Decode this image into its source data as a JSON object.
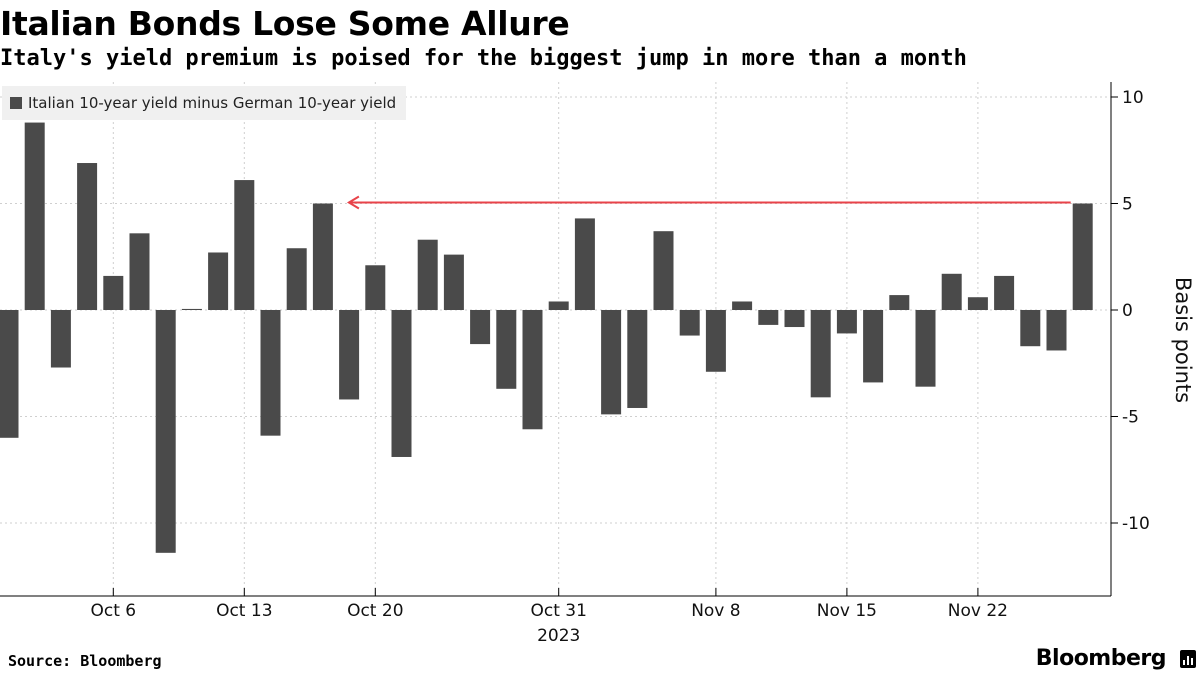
{
  "header": {
    "title": "Italian Bonds Lose Some Allure",
    "subtitle": "Italy's yield premium is poised for the biggest jump in more than a month"
  },
  "footer": {
    "source": "Source: Bloomberg",
    "brand": "Bloomberg"
  },
  "colors": {
    "bar": "#4a4a4a",
    "arrow": "#e8434a",
    "grid": "#cfcfcf",
    "axis": "#000000"
  },
  "chart_data": {
    "type": "bar",
    "title": "Italian Bonds Lose Some Allure",
    "subtitle": "Italy's yield premium is poised for the biggest jump in more than a month",
    "legend": [
      "Italian 10-year yield minus German 10-year yield"
    ],
    "legend_position": "top-left",
    "ylabel": "Basis points",
    "ylim": [
      -13,
      10.5
    ],
    "yticks": [
      10,
      5,
      0,
      -5,
      -10
    ],
    "y_axis_side": "right",
    "grid": true,
    "x_tick_labels": [
      {
        "label": "Oct 6",
        "bar_index": 4
      },
      {
        "label": "Oct 13",
        "bar_index": 9
      },
      {
        "label": "Oct 20",
        "bar_index": 14
      },
      {
        "label": "Oct 31",
        "bar_index": 21
      },
      {
        "label": "Nov 8",
        "bar_index": 27
      },
      {
        "label": "Nov 15",
        "bar_index": 32
      },
      {
        "label": "Nov 22",
        "bar_index": 37
      }
    ],
    "year_label": {
      "label": "2023",
      "bar_index": 21
    },
    "series": [
      {
        "name": "Italian 10-year yield minus German 10-year yield",
        "values": [
          -6.0,
          8.8,
          -2.7,
          6.9,
          1.6,
          3.6,
          -11.4,
          0.05,
          2.7,
          6.1,
          -5.9,
          2.9,
          5.0,
          -4.2,
          2.1,
          -6.9,
          3.3,
          2.6,
          -1.6,
          -3.7,
          -5.6,
          0.4,
          4.3,
          -4.9,
          -4.6,
          3.7,
          -1.2,
          -2.9,
          0.4,
          -0.7,
          -0.8,
          -4.1,
          -1.1,
          -3.4,
          0.7,
          -3.6,
          1.7,
          0.6,
          1.6,
          -1.7,
          -1.9,
          5.0
        ]
      }
    ],
    "annotation": {
      "type": "arrow",
      "from_bar_index": 41,
      "to_bar_index": 12,
      "y": 5.0
    }
  }
}
